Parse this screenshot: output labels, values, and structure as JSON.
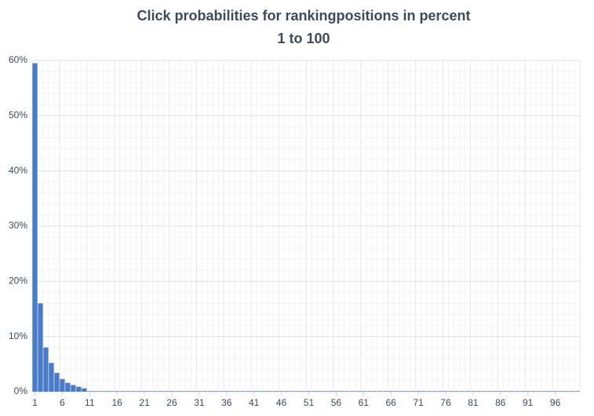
{
  "chart_data": {
    "type": "bar",
    "title": "Click probabilities for rankingpositions in percent",
    "subtitle": "1 to 100",
    "categories": [
      "1",
      null,
      null,
      null,
      null,
      "6",
      null,
      null,
      null,
      null,
      "11",
      null,
      null,
      null,
      null,
      "16",
      null,
      null,
      null,
      null,
      "21",
      null,
      null,
      null,
      null,
      "26",
      null,
      null,
      null,
      null,
      "31",
      null,
      null,
      null,
      null,
      "36",
      null,
      null,
      null,
      null,
      "41",
      null,
      null,
      null,
      null,
      "46",
      null,
      null,
      null,
      null,
      "51",
      null,
      null,
      null,
      null,
      "56",
      null,
      null,
      null,
      null,
      "61",
      null,
      null,
      null,
      null,
      "66",
      null,
      null,
      null,
      null,
      "71",
      null,
      null,
      null,
      null,
      "76",
      null,
      null,
      null,
      null,
      "81",
      null,
      null,
      null,
      null,
      "86",
      null,
      null,
      null,
      null,
      "91",
      null,
      null,
      null,
      null,
      "96",
      null,
      null,
      null,
      null
    ],
    "values": [
      59.5,
      16,
      8,
      5.2,
      3.4,
      2.3,
      1.6,
      1.2,
      0.9,
      0.6,
      0.1,
      0.1,
      0.1,
      0.1,
      0.1,
      0.1,
      0.1,
      0.1,
      0.1,
      0.1,
      0.1,
      0.1,
      0.1,
      0.1,
      0.1,
      0.1,
      0.1,
      0.1,
      0.1,
      0.1,
      0.1,
      0.1,
      0.1,
      0.1,
      0.1,
      0.1,
      0.1,
      0.1,
      0.1,
      0.1,
      0.1,
      0.1,
      0.1,
      0.1,
      0.1,
      0.1,
      0.1,
      0.1,
      0.1,
      0.1,
      0.1,
      0.1,
      0.1,
      0.1,
      0.1,
      0.1,
      0.1,
      0.1,
      0.1,
      0.1,
      0.1,
      0.1,
      0.1,
      0.1,
      0.1,
      0.1,
      0.1,
      0.1,
      0.1,
      0.1,
      0.1,
      0.1,
      0.1,
      0.1,
      0.1,
      0.1,
      0.1,
      0.1,
      0.1,
      0.1,
      0.1,
      0.1,
      0.1,
      0.1,
      0.1,
      0.1,
      0.1,
      0.1,
      0.1,
      0.1,
      0.1,
      0.1,
      0.1,
      0.1,
      0.1,
      0.1,
      0.1,
      0.1,
      0.1,
      0.1
    ],
    "color": "#4a7bc8",
    "ylim": [
      0,
      60
    ],
    "yticks": [
      {
        "value": 0,
        "label": "0%"
      },
      {
        "value": 10,
        "label": "10%"
      },
      {
        "value": 20,
        "label": "20%"
      },
      {
        "value": 30,
        "label": "30%"
      },
      {
        "value": 40,
        "label": "40%"
      },
      {
        "value": 50,
        "label": "50%"
      },
      {
        "value": 60,
        "label": "60%"
      }
    ],
    "grid": true
  }
}
